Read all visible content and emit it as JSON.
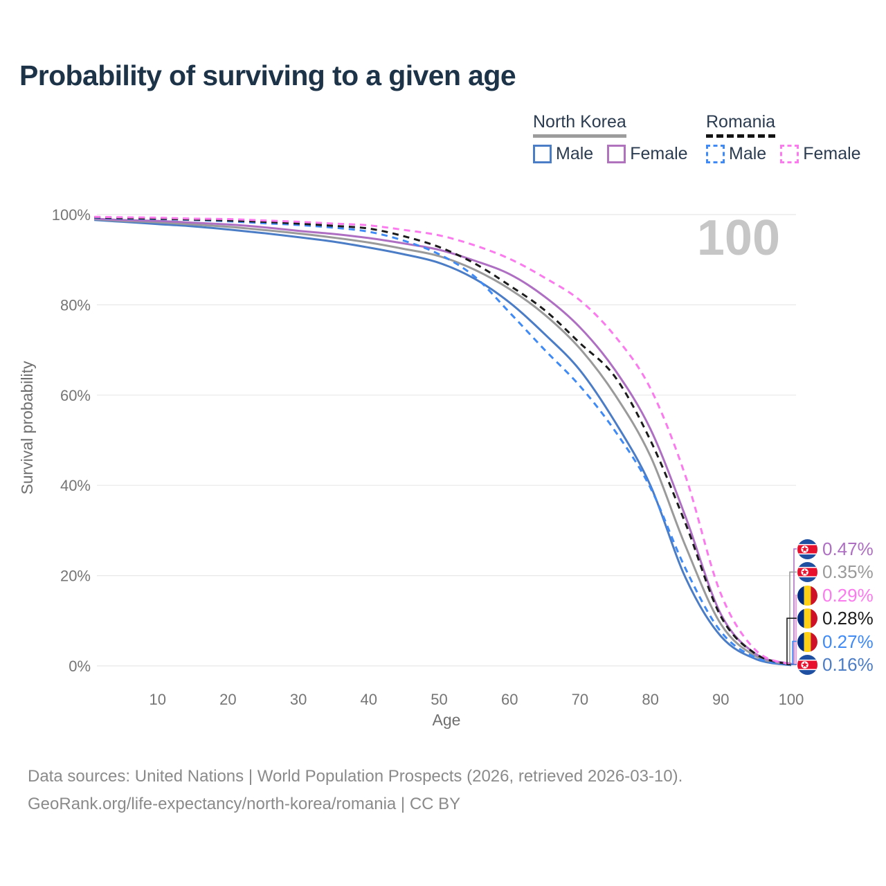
{
  "header": {
    "title": "Probability of surviving to a given age"
  },
  "legend": {
    "groups": [
      {
        "name": "North Korea",
        "style": "solid",
        "underline_color": "#9c9c9c",
        "items": [
          {
            "label": "Male",
            "color": "#4b7cc6"
          },
          {
            "label": "Female",
            "color": "#b072bd"
          }
        ]
      },
      {
        "name": "Romania",
        "style": "dashed",
        "underline_color": "#141414",
        "items": [
          {
            "label": "Male",
            "color": "#3f8af5"
          },
          {
            "label": "Female",
            "color": "#fb7aee"
          }
        ]
      }
    ]
  },
  "chart_data": {
    "type": "line",
    "title": "Probability of surviving to a given age",
    "xlabel": "Age",
    "ylabel": "Survival probability",
    "xlim": [
      0,
      100
    ],
    "ylim": [
      0,
      100
    ],
    "grid": true,
    "legend_position": "top-right",
    "watermark": "100",
    "xticks": [
      10,
      20,
      30,
      40,
      50,
      60,
      70,
      80,
      90,
      100
    ],
    "yticks": [
      0,
      20,
      40,
      60,
      80,
      100
    ],
    "ytick_suffix": "%",
    "x": [
      1,
      5,
      10,
      15,
      20,
      25,
      30,
      35,
      40,
      45,
      50,
      55,
      60,
      65,
      70,
      75,
      80,
      85,
      90,
      95,
      100
    ],
    "series": [
      {
        "id": "nk-male",
        "name": "North Korea Male",
        "style": "solid",
        "color": "#4b7cc6",
        "values": [
          98.8,
          98.4,
          97.9,
          97.4,
          96.7,
          95.9,
          95.0,
          94.0,
          92.7,
          91.2,
          89.3,
          85.8,
          80.5,
          73.5,
          65.5,
          54.0,
          40.0,
          19.5,
          6.6,
          1.5,
          0.16
        ]
      },
      {
        "id": "nk-both",
        "name": "North Korea",
        "style": "solid",
        "color": "#9a9a9a",
        "values": [
          99.0,
          98.6,
          98.3,
          97.8,
          97.3,
          96.6,
          95.8,
          94.9,
          93.8,
          92.4,
          90.8,
          87.8,
          83.5,
          77.8,
          70.3,
          60.0,
          46.5,
          26.5,
          9.3,
          2.1,
          0.35
        ]
      },
      {
        "id": "nk-female",
        "name": "North Korea Female",
        "style": "solid",
        "color": "#ae6fc3",
        "values": [
          99.1,
          98.8,
          98.6,
          98.2,
          97.8,
          97.2,
          96.4,
          95.7,
          94.8,
          93.6,
          92.2,
          89.8,
          86.8,
          81.8,
          75.0,
          65.5,
          52.5,
          33.0,
          11.5,
          2.6,
          0.47
        ]
      },
      {
        "id": "ro-male",
        "name": "Romania Male",
        "style": "dashed",
        "color": "#3f8af5",
        "values": [
          99.3,
          99.1,
          99.0,
          98.8,
          98.5,
          98.1,
          97.7,
          97.1,
          96.2,
          94.2,
          91.2,
          86.3,
          78.3,
          70.0,
          62.0,
          52.0,
          39.5,
          21.5,
          7.6,
          1.8,
          0.27
        ]
      },
      {
        "id": "ro-both",
        "name": "Romania",
        "style": "dashed",
        "color": "#1b1b1b",
        "values": [
          99.4,
          99.2,
          99.1,
          98.9,
          98.7,
          98.4,
          98.0,
          97.5,
          96.9,
          95.2,
          92.8,
          89.2,
          84.3,
          78.8,
          71.5,
          64.0,
          50.0,
          31.5,
          11.0,
          2.6,
          0.28
        ]
      },
      {
        "id": "ro-female",
        "name": "Romania Female",
        "style": "dashed",
        "color": "#fb7aee",
        "values": [
          99.5,
          99.4,
          99.3,
          99.1,
          99.0,
          98.7,
          98.4,
          98.0,
          97.6,
          96.6,
          95.4,
          93.2,
          90.2,
          86.0,
          81.0,
          73.0,
          61.5,
          42.0,
          16.0,
          3.4,
          0.29
        ]
      }
    ],
    "end_labels": [
      {
        "value": "0.47%",
        "flag": "north-korea",
        "color": "#ae6fc3",
        "series": "North Korea Female"
      },
      {
        "value": "0.35%",
        "flag": "north-korea",
        "color": "#9a9a9a",
        "series": "North Korea"
      },
      {
        "value": "0.29%",
        "flag": "romania",
        "color": "#fb7aee",
        "series": "Romania Female"
      },
      {
        "value": "0.28%",
        "flag": "romania",
        "color": "#1b1b1b",
        "series": "Romania"
      },
      {
        "value": "0.27%",
        "flag": "romania",
        "color": "#3f8af5",
        "series": "Romania Male"
      },
      {
        "value": "0.16%",
        "flag": "north-korea",
        "color": "#4b7cc6",
        "series": "North Korea Male"
      }
    ]
  },
  "footer": {
    "line1": "Data sources: United Nations | World Population Prospects (2026, retrieved 2026-03-10).",
    "line2": "GeoRank.org/life-expectancy/north-korea/romania | CC BY"
  }
}
